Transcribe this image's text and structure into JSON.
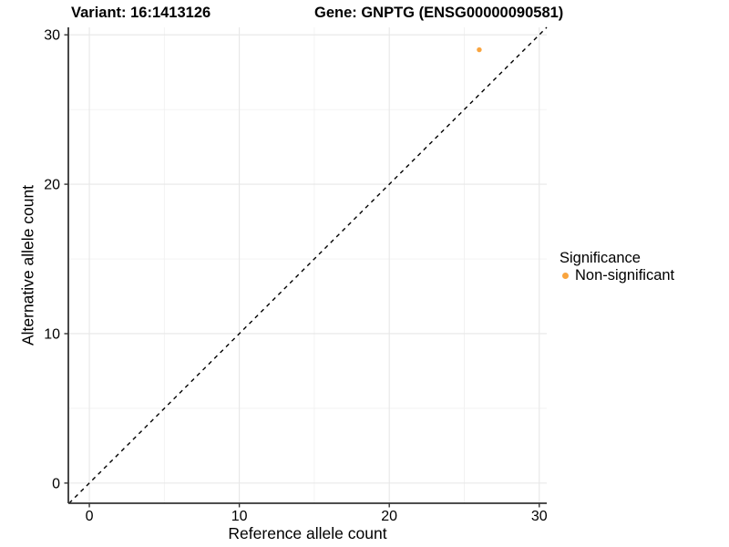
{
  "header": {
    "variant_title": "Variant: 16:1413126",
    "gene_title": "Gene: GNPTG (ENSG00000090581)"
  },
  "chart_data": {
    "type": "scatter",
    "title": "Variant: 16:1413126  |  Gene: GNPTG (ENSG00000090581)",
    "xlabel": "Reference allele count",
    "ylabel": "Alternative allele count",
    "x_ticks": [
      0,
      10,
      20,
      30
    ],
    "y_ticks": [
      0,
      10,
      20,
      30
    ],
    "x_minor_gridlines": [
      5,
      15,
      25
    ],
    "y_minor_gridlines": [
      5,
      15,
      25
    ],
    "xlim": [
      -1.4,
      30.5
    ],
    "ylim": [
      -1.35,
      30.5
    ],
    "grid": true,
    "points": [
      {
        "x": 26,
        "y": 29,
        "series": "Non-significant"
      }
    ],
    "identity_line": {
      "style": "dashed",
      "equation": "y = x",
      "color": "#000000"
    },
    "legend": {
      "title": "Significance",
      "position": "right",
      "entries": [
        {
          "label": "Non-significant",
          "color": "#F9A43E"
        }
      ]
    }
  }
}
